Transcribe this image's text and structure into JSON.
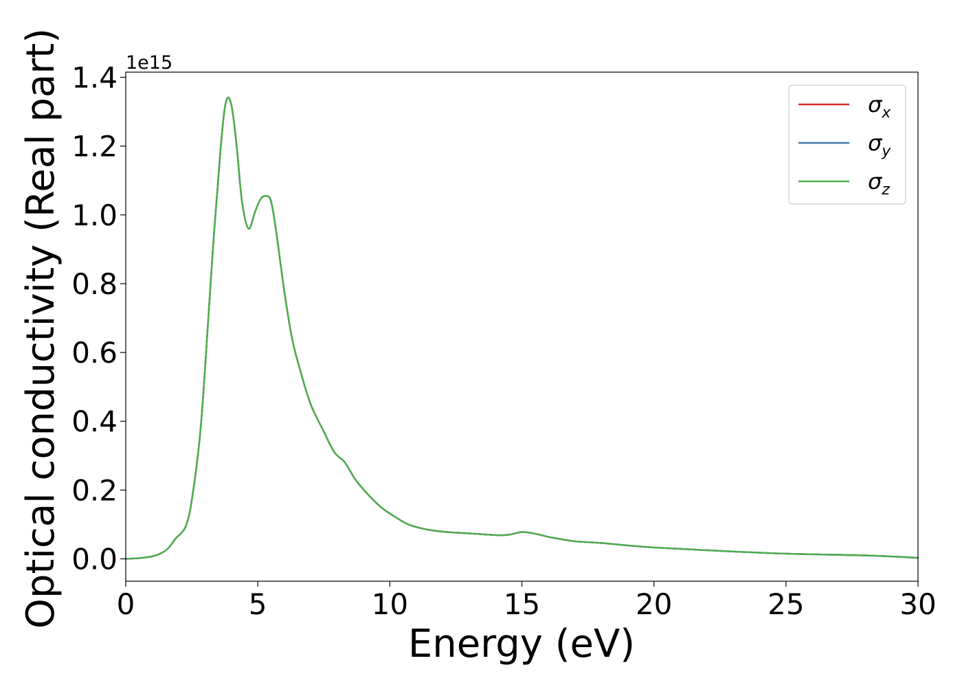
{
  "chart_data": {
    "type": "line",
    "xlabel": "Energy (eV)",
    "ylabel": "Optical conductivity (Real part)",
    "y_multiplier_label": "1e15",
    "xlim": [
      0,
      30
    ],
    "ylim": [
      -0.065,
      1.415
    ],
    "x_ticks": [
      0,
      5,
      10,
      15,
      20,
      25,
      30
    ],
    "x_tick_labels": [
      "0",
      "5",
      "10",
      "15",
      "20",
      "25",
      "30"
    ],
    "y_ticks": [
      0.0,
      0.2,
      0.4,
      0.6,
      0.8,
      1.0,
      1.2,
      1.4
    ],
    "y_tick_labels": [
      "0.0",
      "0.2",
      "0.4",
      "0.6",
      "0.8",
      "1.0",
      "1.2",
      "1.4"
    ],
    "grid": false,
    "legend_position": "top-right",
    "legend": [
      {
        "symbol": "σ",
        "subscript": "x",
        "color": "#d62728"
      },
      {
        "symbol": "σ",
        "subscript": "y",
        "color": "#3a78b5"
      },
      {
        "symbol": "σ",
        "subscript": "z",
        "color": "#4daf4a"
      }
    ],
    "x": [
      0,
      0.5,
      1.0,
      1.3,
      1.6,
      1.9,
      2.1,
      2.3,
      2.5,
      2.8,
      3.0,
      3.3,
      3.6,
      3.8,
      4.0,
      4.2,
      4.4,
      4.65,
      4.9,
      5.1,
      5.3,
      5.5,
      5.7,
      6.0,
      6.3,
      6.6,
      7.0,
      7.5,
      7.9,
      8.3,
      8.7,
      9.2,
      9.7,
      10.2,
      10.7,
      11.3,
      12.0,
      13.0,
      14.0,
      14.5,
      15.0,
      15.5,
      16.0,
      16.5,
      17.0,
      18.0,
      19.0,
      20.0,
      22.0,
      25.0,
      28.0,
      30.0
    ],
    "series": [
      {
        "color": "#d62728",
        "values": [
          0.0,
          0.002,
          0.007,
          0.015,
          0.03,
          0.06,
          0.075,
          0.1,
          0.17,
          0.35,
          0.55,
          0.9,
          1.2,
          1.33,
          1.32,
          1.2,
          1.04,
          0.96,
          1.01,
          1.045,
          1.055,
          1.04,
          0.95,
          0.78,
          0.64,
          0.55,
          0.45,
          0.37,
          0.31,
          0.28,
          0.23,
          0.185,
          0.148,
          0.122,
          0.1,
          0.087,
          0.079,
          0.074,
          0.069,
          0.07,
          0.078,
          0.073,
          0.064,
          0.057,
          0.051,
          0.046,
          0.039,
          0.033,
          0.025,
          0.015,
          0.01,
          0.003
        ]
      },
      {
        "color": "#3a78b5",
        "values": [
          0.0,
          0.002,
          0.007,
          0.015,
          0.03,
          0.06,
          0.075,
          0.1,
          0.17,
          0.35,
          0.55,
          0.9,
          1.2,
          1.33,
          1.32,
          1.2,
          1.04,
          0.96,
          1.01,
          1.045,
          1.055,
          1.04,
          0.95,
          0.78,
          0.64,
          0.55,
          0.45,
          0.37,
          0.31,
          0.28,
          0.23,
          0.185,
          0.148,
          0.122,
          0.1,
          0.087,
          0.079,
          0.074,
          0.069,
          0.07,
          0.078,
          0.073,
          0.064,
          0.057,
          0.051,
          0.046,
          0.039,
          0.033,
          0.025,
          0.015,
          0.01,
          0.003
        ]
      },
      {
        "color": "#4daf4a",
        "values": [
          0.0,
          0.002,
          0.007,
          0.015,
          0.03,
          0.06,
          0.075,
          0.1,
          0.17,
          0.35,
          0.55,
          0.9,
          1.2,
          1.33,
          1.32,
          1.2,
          1.04,
          0.96,
          1.01,
          1.045,
          1.055,
          1.04,
          0.95,
          0.78,
          0.64,
          0.55,
          0.45,
          0.37,
          0.31,
          0.28,
          0.23,
          0.185,
          0.148,
          0.122,
          0.1,
          0.087,
          0.079,
          0.074,
          0.069,
          0.07,
          0.078,
          0.073,
          0.064,
          0.057,
          0.051,
          0.046,
          0.039,
          0.033,
          0.025,
          0.015,
          0.01,
          0.003
        ]
      }
    ]
  }
}
